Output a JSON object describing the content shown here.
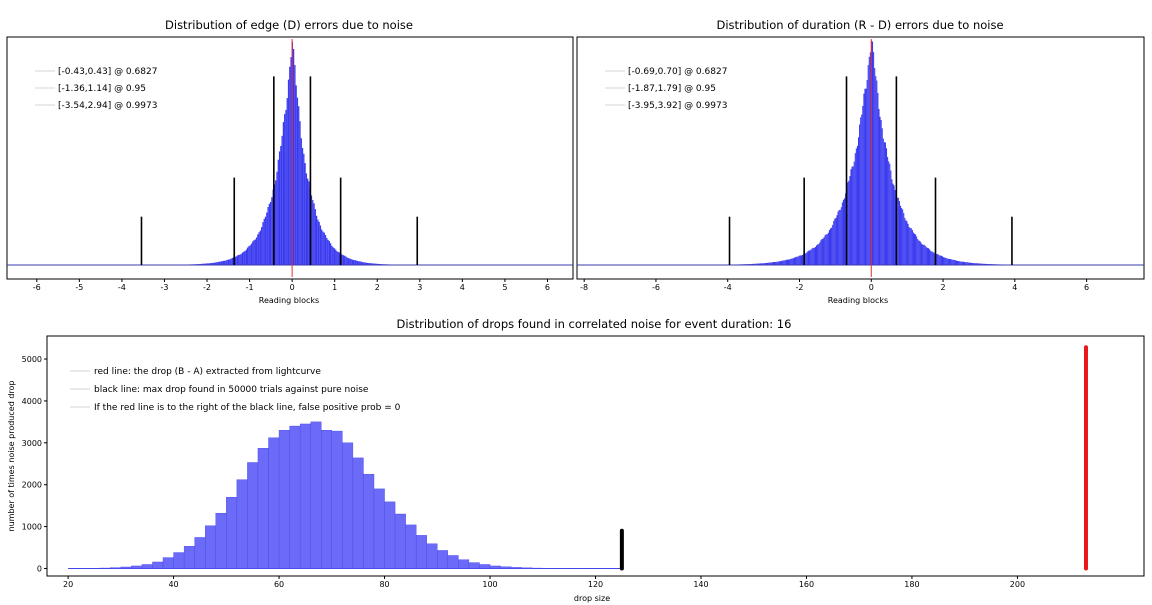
{
  "chart_data": [
    {
      "id": "edge",
      "type": "histogram",
      "title": "Distribution of edge (D) errors due to noise",
      "xlabel": "Reading blocks",
      "ylabel": "",
      "xlim": [
        -6.7,
        6.6
      ],
      "xticks": [
        -6,
        -5,
        -4,
        -3,
        -2,
        -1,
        0,
        1,
        2,
        3,
        4,
        5,
        6
      ],
      "ymax_relative": 1.0,
      "grid": false,
      "legend_position": "top-left",
      "legend": [
        "[-0.43,0.43] @ 0.6827",
        "[-1.36,1.14] @ 0.95",
        "[-3.54,2.94] @ 0.9973"
      ],
      "distribution": {
        "shape": "laplace-like",
        "center": 0.0,
        "left_scale": 0.4,
        "right_scale": 0.38
      },
      "center_line": {
        "x": 0.0,
        "color": "#e03030"
      },
      "confidence_intervals": [
        {
          "lower": -0.43,
          "upper": 0.43,
          "level": 0.6827,
          "marker_height": 0.82
        },
        {
          "lower": -1.36,
          "upper": 1.14,
          "level": 0.95,
          "marker_height": 0.38
        },
        {
          "lower": -3.54,
          "upper": 2.94,
          "level": 0.9973,
          "marker_height": 0.21
        }
      ],
      "colors": {
        "bars": "#3a3af0",
        "ci_lines": "#000000",
        "center_line": "#e03030"
      }
    },
    {
      "id": "duration",
      "type": "histogram",
      "title": "Distribution of duration (R - D) errors due to noise",
      "xlabel": "Reading blocks",
      "ylabel": "",
      "xlim": [
        -8.2,
        7.6
      ],
      "xticks": [
        -8,
        -6,
        -4,
        -2,
        0,
        2,
        4,
        6
      ],
      "ymax_relative": 1.0,
      "grid": false,
      "legend_position": "top-left",
      "legend": [
        "[-0.69,0.70] @ 0.6827",
        "[-1.87,1.79] @ 0.95",
        "[-3.95,3.92] @ 0.9973"
      ],
      "distribution": {
        "shape": "laplace-like",
        "center": 0.0,
        "left_scale": 0.62,
        "right_scale": 0.6
      },
      "center_line": {
        "x": 0.0,
        "color": "#e03030"
      },
      "confidence_intervals": [
        {
          "lower": -0.69,
          "upper": 0.7,
          "level": 0.6827,
          "marker_height": 0.82
        },
        {
          "lower": -1.87,
          "upper": 1.79,
          "level": 0.95,
          "marker_height": 0.38
        },
        {
          "lower": -3.95,
          "upper": 3.92,
          "level": 0.9973,
          "marker_height": 0.21
        }
      ],
      "colors": {
        "bars": "#3a3af0",
        "ci_lines": "#000000",
        "center_line": "#e03030"
      }
    },
    {
      "id": "drops",
      "type": "bar",
      "title": "Distribution of drops found in correlated noise for event duration: 16",
      "xlabel": "drop size",
      "ylabel": "number of times noise produced drop",
      "xlim": [
        16,
        224
      ],
      "ylim": [
        -180,
        5550
      ],
      "xticks": [
        20,
        40,
        60,
        80,
        100,
        120,
        140,
        160,
        180,
        200
      ],
      "yticks": [
        0,
        1000,
        2000,
        3000,
        4000,
        5000
      ],
      "grid": false,
      "legend_position": "top-left",
      "legend": [
        "red line: the drop (B - A) extracted from lightcurve",
        "black line: max drop found in 50000 trials against pure noise",
        "If the red line is to the right of the black line, false positive prob = 0"
      ],
      "bin_width": 2,
      "x": [
        20,
        22,
        24,
        26,
        28,
        30,
        32,
        34,
        36,
        38,
        40,
        42,
        44,
        46,
        48,
        50,
        52,
        54,
        56,
        58,
        60,
        62,
        64,
        66,
        68,
        70,
        72,
        74,
        76,
        78,
        80,
        82,
        84,
        86,
        88,
        90,
        92,
        94,
        96,
        98,
        100,
        102,
        104,
        106,
        108,
        110,
        112,
        114,
        116,
        118,
        120,
        122,
        124
      ],
      "values": [
        0,
        2,
        5,
        10,
        20,
        35,
        60,
        95,
        155,
        260,
        380,
        530,
        740,
        1020,
        1320,
        1700,
        2120,
        2530,
        2870,
        3120,
        3300,
        3400,
        3450,
        3500,
        3300,
        3280,
        3000,
        2640,
        2250,
        1900,
        1590,
        1300,
        1040,
        790,
        590,
        430,
        310,
        210,
        140,
        95,
        60,
        40,
        25,
        15,
        9,
        6,
        4,
        2,
        1,
        1,
        0,
        0,
        0
      ],
      "vertical_lines": [
        {
          "name": "black line",
          "x": 125,
          "y_max": 900,
          "color": "#000000"
        },
        {
          "name": "red line",
          "x": 213,
          "y_max": 5280,
          "color": "#e81818"
        }
      ],
      "colors": {
        "bars": "#6b6bf7",
        "bar_edges": "#4444ee"
      }
    }
  ]
}
